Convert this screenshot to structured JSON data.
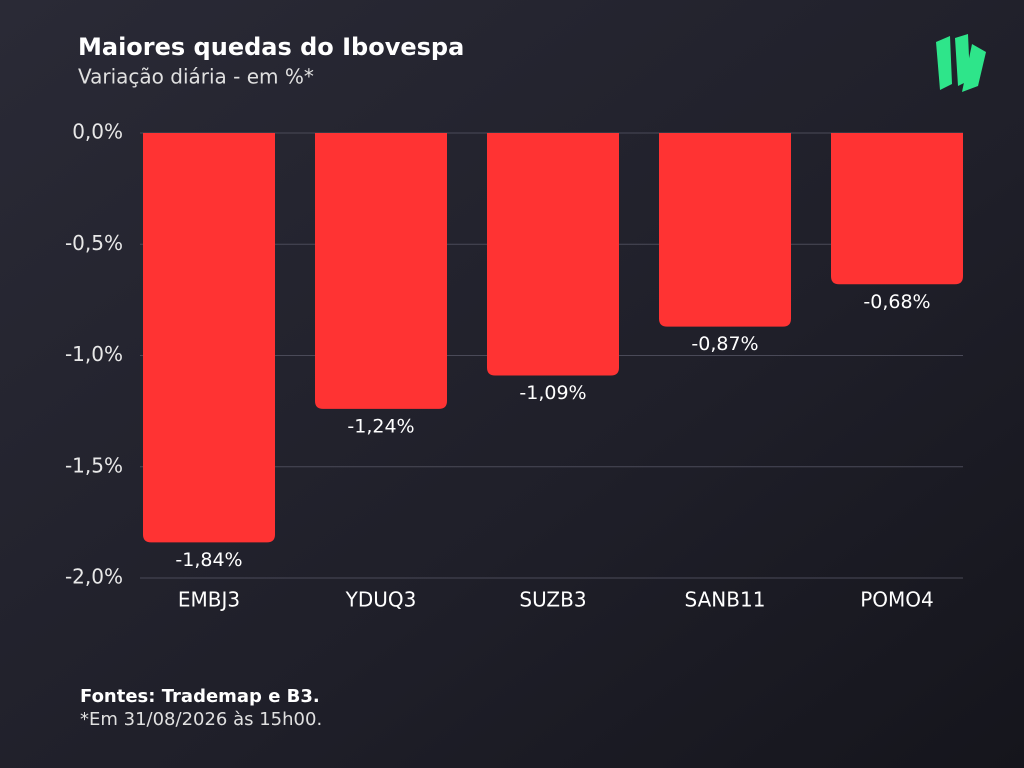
{
  "chart_data": {
    "type": "bar",
    "title": "Maiores quedas do Ibovespa",
    "subtitle": "Variação diária - em %*",
    "categories": [
      "EMBJ3",
      "YDUQ3",
      "SUZB3",
      "SANB11",
      "POMO4"
    ],
    "values": [
      -1.84,
      -1.24,
      -1.09,
      -0.87,
      -0.68
    ],
    "value_labels": [
      "-1,84%",
      "-1,24%",
      "-1,09%",
      "-0,87%",
      "-0,68%"
    ],
    "color": "#ff3333",
    "ylim": [
      -2,
      0
    ],
    "yticks": [
      {
        "value": 0,
        "label": "0,0%"
      },
      {
        "value": -0.5,
        "label": "-0,5%"
      },
      {
        "value": -1,
        "label": "-1,0%"
      },
      {
        "value": -1.5,
        "label": "-1,5%"
      },
      {
        "value": -2,
        "label": "-2,0%"
      }
    ],
    "grid": true,
    "source": "Fontes: Trademap e B3.",
    "note": "*Em 31/08/2026 às 15h00."
  }
}
